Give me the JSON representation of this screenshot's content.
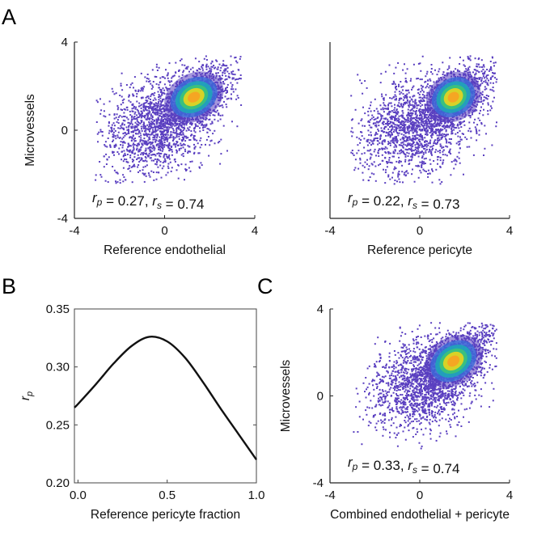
{
  "panels": {
    "a": "A",
    "b": "B",
    "c": "C"
  },
  "chart_data": [
    {
      "type": "scatter",
      "panel": "A",
      "subtype": "density scatter",
      "xlabel": "Reference endothelial",
      "ylabel": "Microvessels",
      "xlim": [
        -4,
        4
      ],
      "ylim": [
        -4,
        4
      ],
      "xticks": [
        "-4",
        "0",
        "4"
      ],
      "yticks": [
        "-4",
        "0",
        "4"
      ],
      "annotation": {
        "rp_label": "r",
        "rp_sub": "p",
        "rp_value": " = 0.27, ",
        "rs_label": "r",
        "rs_sub": "s",
        "rs_value": " = 0.74"
      },
      "cloud": {
        "center": [
          -0.3,
          0.3
        ],
        "sd": [
          1.3,
          1.1
        ]
      },
      "core": {
        "center": [
          1.3,
          1.5
        ],
        "sd": [
          0.6,
          0.45
        ],
        "angle_deg": 30
      },
      "seed": 11
    },
    {
      "type": "scatter",
      "panel": "A",
      "subtype": "density scatter",
      "xlabel": "Reference pericyte",
      "ylabel": "",
      "xlim": [
        -4,
        4
      ],
      "ylim": [
        -4,
        4
      ],
      "xticks": [
        "-4",
        "0",
        "4"
      ],
      "yticks": [],
      "annotation": {
        "rp_label": "r",
        "rp_sub": "p",
        "rp_value": " = 0.22, ",
        "rs_label": "r",
        "rs_sub": "s",
        "rs_value": " = 0.73"
      },
      "cloud": {
        "center": [
          -0.2,
          0.3
        ],
        "sd": [
          1.35,
          1.15
        ]
      },
      "core": {
        "center": [
          1.5,
          1.5
        ],
        "sd": [
          0.55,
          0.45
        ],
        "angle_deg": 35
      },
      "seed": 23
    },
    {
      "type": "line",
      "panel": "B",
      "xlabel": "Reference pericyte fraction",
      "ylabel_main": "r",
      "ylabel_sub": "p",
      "xlim": [
        -0.02,
        1.0
      ],
      "ylim": [
        0.2,
        0.35
      ],
      "xticks": [
        "0.0",
        "0.5",
        "1.0"
      ],
      "yticks": [
        "0.20",
        "0.25",
        "0.30",
        "0.35"
      ],
      "x": [
        -0.02,
        0,
        0.1,
        0.2,
        0.3,
        0.4,
        0.5,
        0.6,
        0.7,
        0.8,
        0.9,
        1.0
      ],
      "y": [
        0.265,
        0.268,
        0.285,
        0.303,
        0.318,
        0.326,
        0.322,
        0.308,
        0.287,
        0.264,
        0.242,
        0.22
      ]
    },
    {
      "type": "scatter",
      "panel": "C",
      "subtype": "density scatter",
      "xlabel": "Combined endothelial + pericyte",
      "ylabel": "Microvessels",
      "xlim": [
        -4,
        4
      ],
      "ylim": [
        -4,
        4
      ],
      "xticks": [
        "-4",
        "0",
        "4"
      ],
      "yticks": [
        "-4",
        "0",
        "4"
      ],
      "annotation": {
        "rp_label": "r",
        "rp_sub": "p",
        "rp_value": " = 0.33, ",
        "rs_label": "r",
        "rs_sub": "s",
        "rs_value": " = 0.74"
      },
      "cloud": {
        "center": [
          0.1,
          0.6
        ],
        "sd": [
          1.2,
          1.1
        ]
      },
      "core": {
        "center": [
          1.5,
          1.6
        ],
        "sd": [
          0.6,
          0.45
        ],
        "angle_deg": 35
      },
      "seed": 37
    }
  ],
  "colors": {
    "low": "#5a3fc0",
    "mid1": "#3b6ad8",
    "mid2": "#1fa5b8",
    "mid3": "#3cc27a",
    "high1": "#d8d227",
    "high2": "#f5a623"
  }
}
